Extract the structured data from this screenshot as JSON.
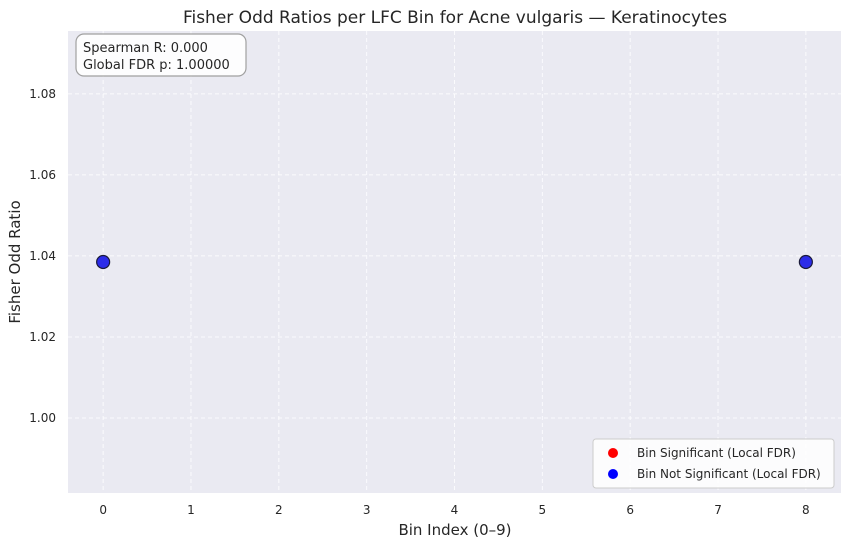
{
  "chart_data": {
    "type": "scatter",
    "title": "Fisher Odd Ratios per LFC Bin for Acne vulgaris — Keratinocytes",
    "xlabel": "Bin Index (0–9)",
    "ylabel": "Fisher Odd Ratio",
    "xlim": [
      -0.4,
      8.4
    ],
    "ylim": [
      0.9815,
      1.0955
    ],
    "x_ticks": [
      0,
      1,
      2,
      3,
      4,
      5,
      6,
      7,
      8
    ],
    "x_tick_labels": [
      "0",
      "1",
      "2",
      "3",
      "4",
      "5",
      "6",
      "7",
      "8"
    ],
    "y_ticks": [
      1.0,
      1.02,
      1.04,
      1.06,
      1.08
    ],
    "y_tick_labels": [
      "1.00",
      "1.02",
      "1.04",
      "1.06",
      "1.08"
    ],
    "grid": true,
    "series": [
      {
        "name": "Bin Significant (Local FDR)",
        "color": "#ff0000",
        "points": []
      },
      {
        "name": "Bin Not Significant (Local FDR)",
        "color": "#0000ff",
        "points": [
          {
            "x": 0,
            "y": 1.0385
          },
          {
            "x": 8,
            "y": 1.0385
          }
        ]
      }
    ],
    "point_fill": "#2b2be8",
    "point_edge": "#1a1a3a",
    "legend_position": "lower-right",
    "annotation": {
      "position": "upper-left",
      "lines": [
        "Spearman R: 0.000",
        "Global FDR p: 1.00000"
      ]
    },
    "colors": {
      "plot_background": "#eaeaf2",
      "page_background": "#ffffff"
    }
  }
}
